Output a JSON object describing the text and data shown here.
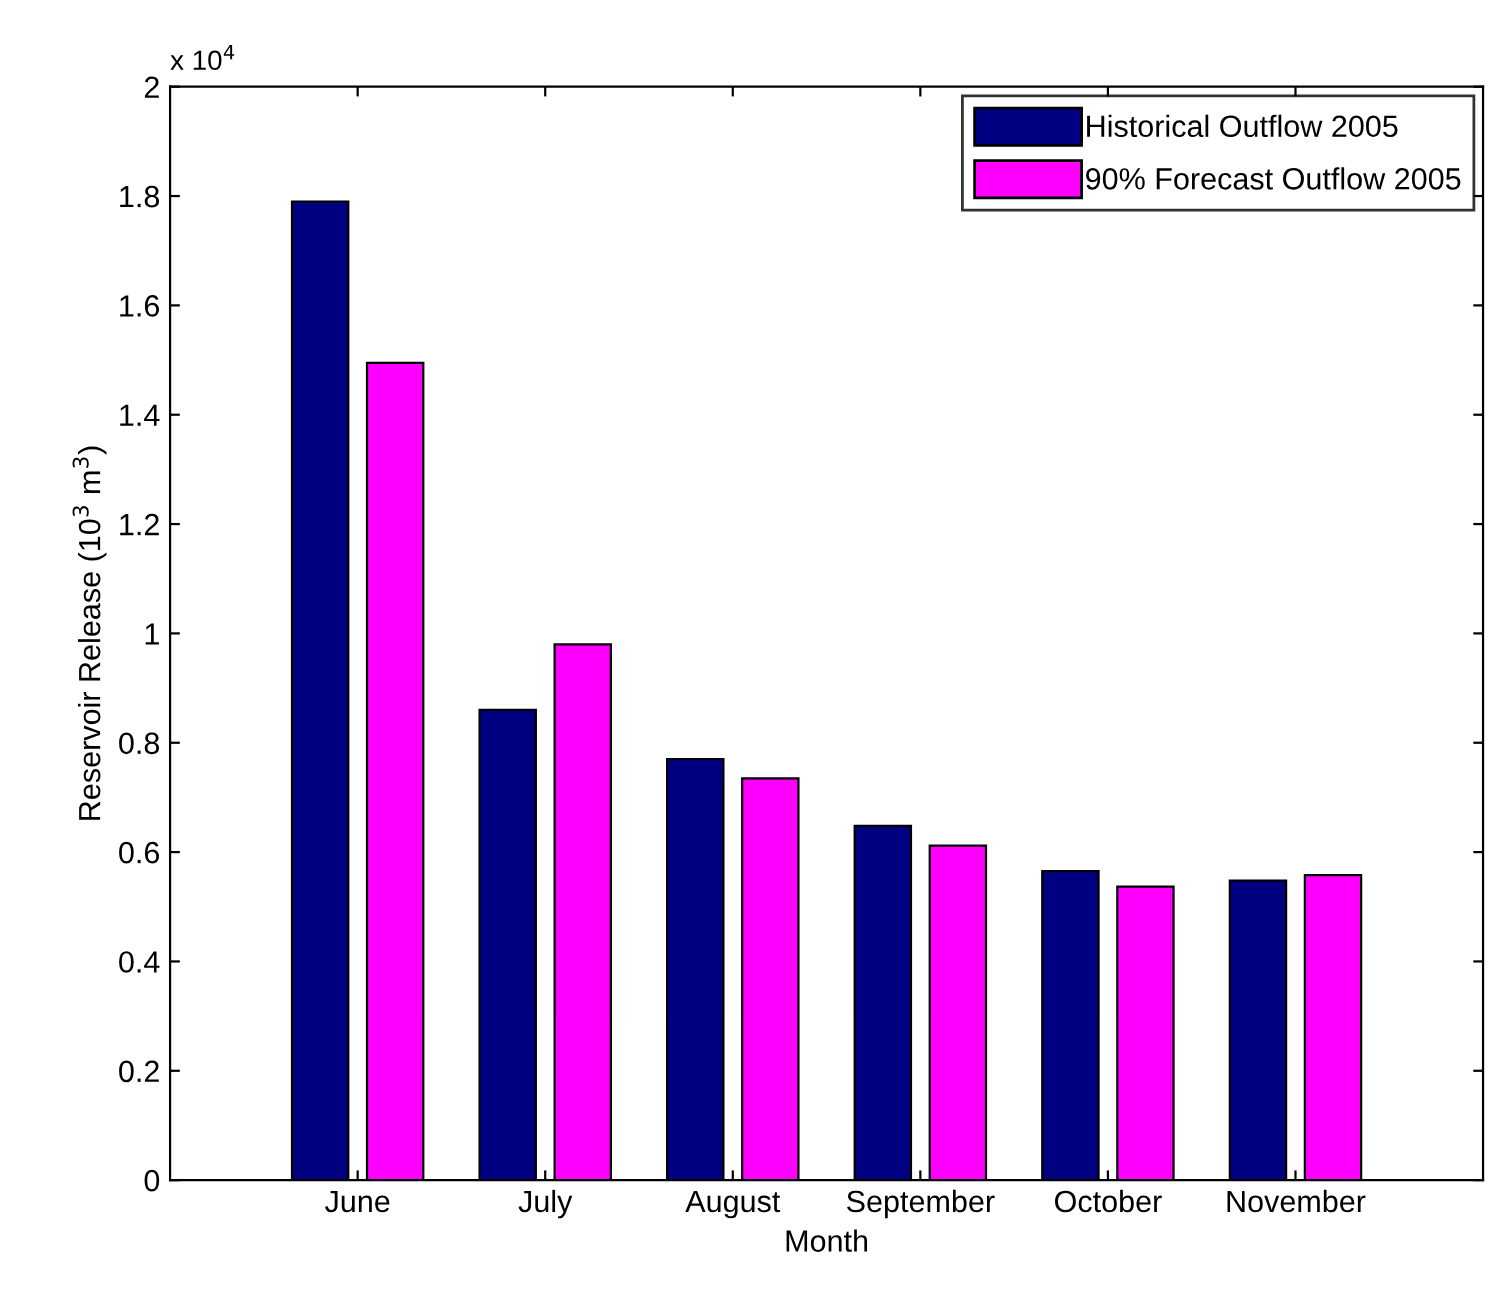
{
  "chart_data": {
    "type": "bar",
    "xlabel": "Month",
    "ylabel": "Reservoir Release (10$^{3}$ m$^{3}$)",
    "categories": [
      "June",
      "July",
      "August",
      "September",
      "October",
      "November"
    ],
    "series": [
      {
        "name": "Historical Outflow 2005",
        "color": "#000080",
        "values": [
          1.79,
          0.86,
          0.77,
          0.648,
          0.565,
          0.548
        ]
      },
      {
        "name": "90% Forecast Outflow 2005",
        "color": "#ff00ff",
        "values": [
          1.495,
          0.98,
          0.735,
          0.612,
          0.537,
          0.558
        ]
      }
    ],
    "ylim": [
      0,
      2
    ],
    "yticks": [
      0,
      0.2,
      0.4,
      0.6,
      0.8,
      1,
      1.2,
      1.4,
      1.6,
      1.8,
      2
    ],
    "annotations": [
      "x 10$^{4}$"
    ],
    "legend": "top right",
    "grid": false
  }
}
